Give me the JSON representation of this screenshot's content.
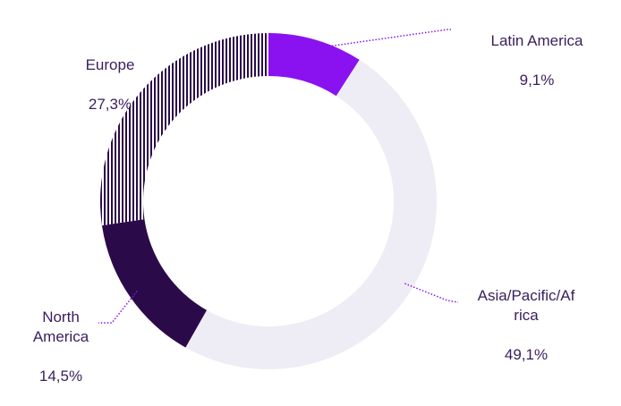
{
  "chart_data": {
    "type": "pie",
    "donut": true,
    "categories": [
      "Latin America",
      "Asia/Pacific/Africa",
      "North America",
      "Europe"
    ],
    "values": [
      9.1,
      49.1,
      14.5,
      27.3
    ],
    "value_labels": [
      "9,1%",
      "49,1%",
      "14,5%",
      "27,3%"
    ],
    "category_labels": [
      "Latin America",
      "Asia/Pacific/Af\nrica",
      "North\nAmerica",
      "Europe"
    ],
    "colors": [
      "#8a12f0",
      "#eeedf5",
      "#2b0a4a",
      "#2b0a4a"
    ],
    "patterns": [
      "solid",
      "solid",
      "solid",
      "vertical-stripes"
    ],
    "title": "",
    "legend": "none"
  }
}
